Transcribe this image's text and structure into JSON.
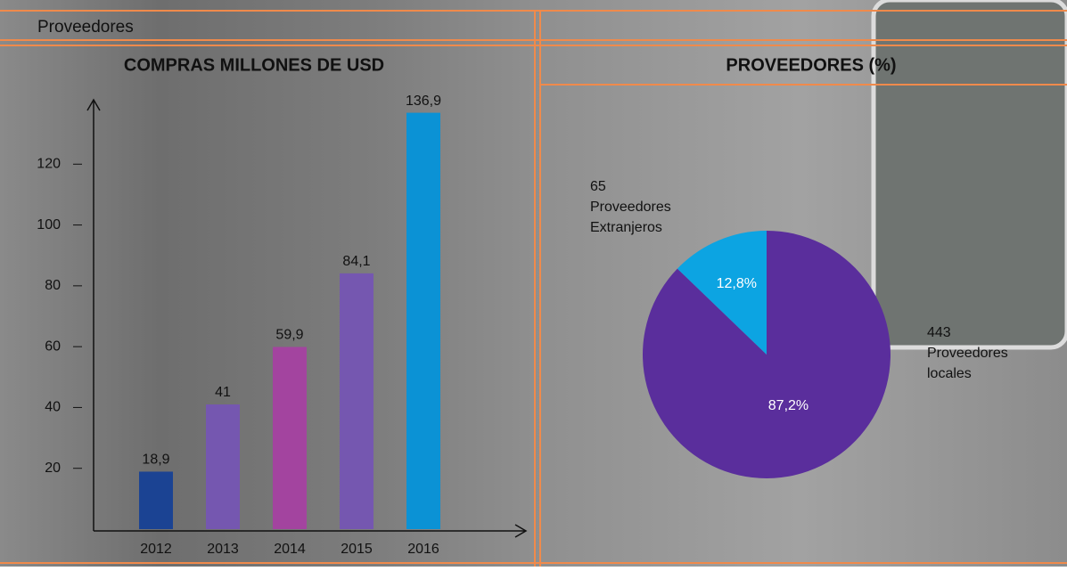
{
  "page_title": "Proveedores",
  "chart_data": [
    {
      "type": "bar",
      "title": "COMPRAS MILLONES DE USD",
      "categories": [
        "2012",
        "2013",
        "2014",
        "2015",
        "2016"
      ],
      "values": [
        18.9,
        41,
        59.9,
        84.1,
        136.9
      ],
      "value_labels": [
        "18,9",
        "41",
        "59,9",
        "84,1",
        "136,9"
      ],
      "colors": [
        "#1b4393",
        "#7557b0",
        "#a3449f",
        "#7557b0",
        "#0b92d5"
      ],
      "ylim": [
        0,
        140
      ],
      "yticks": [
        20,
        40,
        60,
        80,
        100,
        120
      ]
    },
    {
      "type": "pie",
      "title": "PROVEEDORES (%)",
      "categories": [
        "Proveedores locales",
        "Proveedores Extranjeros"
      ],
      "counts": [
        443,
        65
      ],
      "values": [
        87.2,
        12.8
      ],
      "value_labels": [
        "87,2%",
        "12,8%"
      ],
      "colors": [
        "#5a2e9c",
        "#0ca4e2"
      ]
    }
  ]
}
